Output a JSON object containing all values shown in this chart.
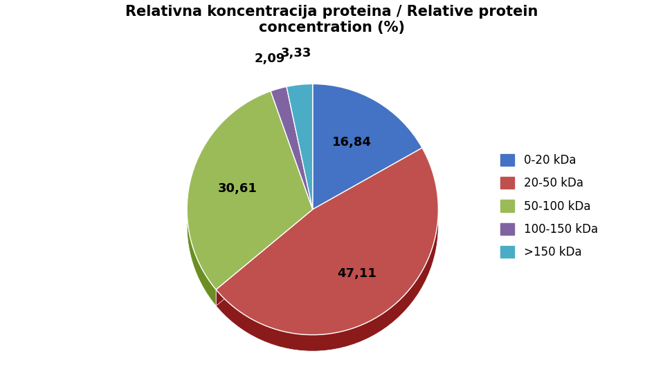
{
  "title": "Relativna koncentracija proteina / Relative protein\nconcentration (%)",
  "slices": [
    16.84,
    47.11,
    30.61,
    2.09,
    3.33
  ],
  "labels": [
    "16,84",
    "47,11",
    "30,61",
    "2,09",
    "3,33"
  ],
  "legend_labels": [
    "0-20 kDa",
    "20-50 kDa",
    "50-100 kDa",
    "100-150 kDa",
    ">150 kDa"
  ],
  "colors": [
    "#4472C4",
    "#C0504D",
    "#9BBB59",
    "#8064A2",
    "#4BACC6"
  ],
  "dark_colors": [
    "#2E4F8A",
    "#8B1A1A",
    "#6B8E23",
    "#5B3F7A",
    "#2E8BA6"
  ],
  "startangle": 90,
  "title_fontsize": 15,
  "label_fontsize": 13,
  "legend_fontsize": 12,
  "background_color": "#FFFFFF"
}
